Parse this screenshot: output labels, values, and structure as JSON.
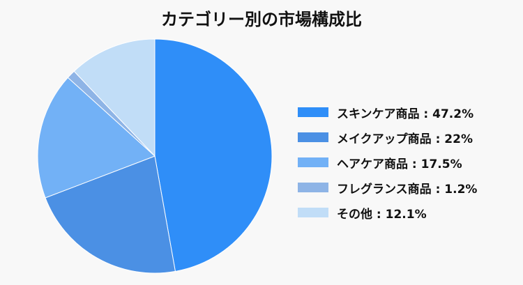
{
  "chart_data": {
    "type": "pie",
    "title": "カテゴリー別の市場構成比",
    "legend_position": "right",
    "start_angle": "top",
    "direction": "clockwise",
    "slices": [
      {
        "label": "スキンケア商品 : 47.2%",
        "category": "スキンケア商品",
        "value": 47.2,
        "color": "#2f8ef8"
      },
      {
        "label": "メイクアップ商品 : 22%",
        "category": "メイクアップ商品",
        "value": 22,
        "color": "#4b90e4"
      },
      {
        "label": "ヘアケア商品 : 17.5%",
        "category": "ヘアケア商品",
        "value": 17.5,
        "color": "#72b1f6"
      },
      {
        "label": "フレグランス商品 : 1.2%",
        "category": "フレグランス商品",
        "value": 1.2,
        "color": "#8eb4e6"
      },
      {
        "label": "その他 : 12.1%",
        "category": "その他",
        "value": 12.1,
        "color": "#c1ddf7"
      }
    ]
  }
}
